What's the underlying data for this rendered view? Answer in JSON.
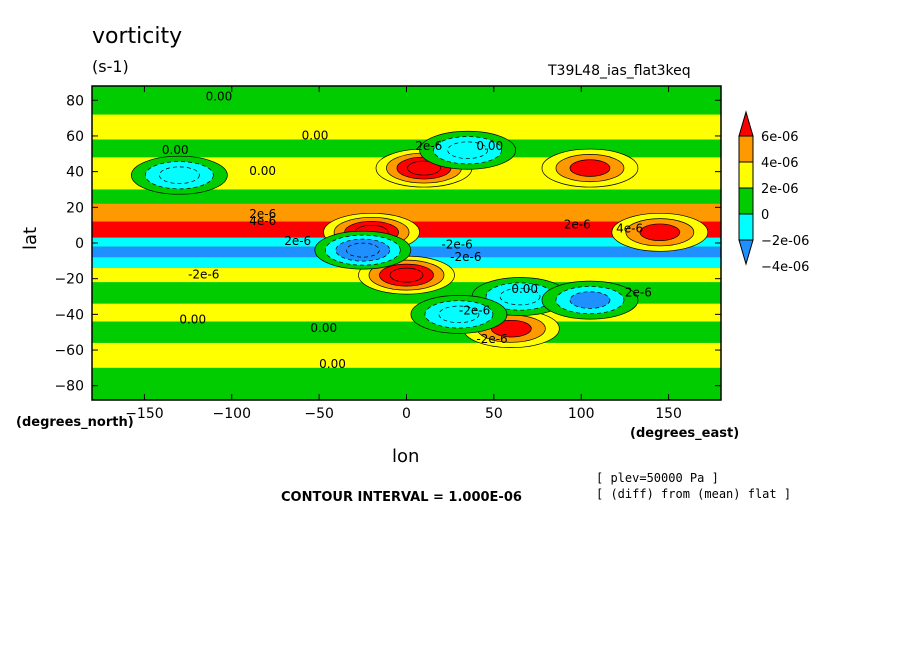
{
  "header": {
    "title": "vorticity",
    "units": "(s-1)",
    "dataset": "T39L48_ias_flat3keq"
  },
  "axes_text": {
    "xlabel": "lon",
    "ylabel": "lat",
    "x_units": "(degrees_east)",
    "y_units": "(degrees_north)"
  },
  "footer": {
    "contour_interval": "CONTOUR INTERVAL = 1.000E-06",
    "plev": "[ plev=50000 Pa ]",
    "diff_note": "[ (diff) from (mean) flat ]"
  },
  "chart_data": {
    "type": "heatmap",
    "title": "vorticity",
    "xlabel": "lon",
    "ylabel": "lat",
    "xlim": [
      -180,
      180
    ],
    "ylim": [
      -88,
      88
    ],
    "x_ticks": [
      -150,
      -100,
      -50,
      0,
      50,
      100,
      150
    ],
    "y_ticks": [
      80,
      60,
      40,
      20,
      0,
      -20,
      -40,
      -60,
      -80
    ],
    "colorbar": {
      "labels": [
        "6e-06",
        "4e-06",
        "2e-06",
        "0",
        "-2e-06",
        "-4e-06"
      ],
      "levels": [
        -4e-06,
        -2e-06,
        0,
        2e-06,
        4e-06,
        6e-06
      ],
      "colors": [
        "#1e90ff",
        "#00ffff",
        "#00cc00",
        "#ffff00",
        "#ff9900",
        "#ff0000"
      ]
    },
    "features": [
      {
        "lon": -20,
        "lat": 6,
        "value": 6e-06
      },
      {
        "lon": 10,
        "lat": 42,
        "value": 5e-06
      },
      {
        "lon": 105,
        "lat": 42,
        "value": 4e-06
      },
      {
        "lon": 60,
        "lat": -48,
        "value": 4e-06
      },
      {
        "lon": 145,
        "lat": 6,
        "value": 4e-06
      },
      {
        "lon": 0,
        "lat": -18,
        "value": 6e-06
      },
      {
        "lon": -25,
        "lat": -4,
        "value": -5e-06
      },
      {
        "lon": 35,
        "lat": 52,
        "value": -3e-06
      },
      {
        "lon": 65,
        "lat": -30,
        "value": -3e-06
      },
      {
        "lon": 105,
        "lat": -32,
        "value": -4e-06
      },
      {
        "lon": -130,
        "lat": 38,
        "value": -3e-06
      },
      {
        "lon": 30,
        "lat": -40,
        "value": -3e-06
      }
    ],
    "contour_labels": [
      "0.00",
      "0.00",
      "0.00",
      "0.00",
      "0.00",
      "0.00",
      "0.00",
      "0.00",
      "0.00",
      "2e-6",
      "2e-6",
      "2e-6",
      "-2e-6",
      "-2e-6",
      "-2e-6",
      "-2e-6",
      "4e-6",
      "4e-6",
      "-2e-6",
      "2e-6",
      "2e-6"
    ]
  }
}
